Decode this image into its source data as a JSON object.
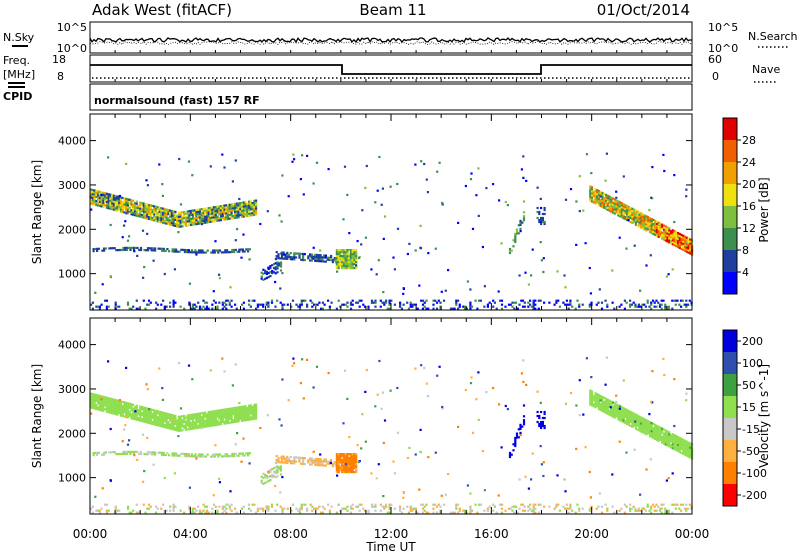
{
  "header": {
    "station": "Adak West (fitACF)",
    "beam": "Beam 11",
    "date": "01/Oct/2014"
  },
  "sky_panel": {
    "left_label": "N.Sky",
    "right_label": "N.Search",
    "ticks": [
      "10^5",
      "10^0"
    ]
  },
  "freq_panel": {
    "left_label_line1": "Freq.",
    "left_label_line2": "[MHz]",
    "right_label": "Nave",
    "left_ticks": [
      "18",
      "8"
    ],
    "right_ticks": [
      "60",
      "0"
    ]
  },
  "cpid": {
    "label": "CPID",
    "text": "normalsound (fast) 157 RF"
  },
  "colors": {
    "power": [
      "#0000ff",
      "#1f3f9f",
      "#3d8f4f",
      "#7fbf3f",
      "#f0e010",
      "#f0a000",
      "#f06000",
      "#e00000"
    ],
    "velocity": [
      "#ff0000",
      "#ff7f00",
      "#ffaf40",
      "#c8c8c8",
      "#8fdf50",
      "#3fa03f",
      "#2f4faf",
      "#0000dd"
    ]
  },
  "chart_data": [
    {
      "type": "heatmap",
      "title": "Power",
      "ylabel": "Slant Range [km]",
      "xlabel": "Time UT",
      "xlim": [
        "00:00",
        "24:00"
      ],
      "ylim": [
        180,
        4600
      ],
      "yticks": [
        1000,
        2000,
        3000,
        4000
      ],
      "xticks": [
        "00:00",
        "04:00",
        "08:00",
        "12:00",
        "16:00",
        "20:00",
        "00:00"
      ],
      "colorbar": {
        "label": "Power [dB]",
        "ticks": [
          4,
          8,
          12,
          16,
          20,
          24,
          28
        ]
      }
    },
    {
      "type": "heatmap",
      "title": "Velocity",
      "ylabel": "Slant Range [km]",
      "xlabel": "Time UT",
      "xlim": [
        "00:00",
        "24:00"
      ],
      "ylim": [
        180,
        4600
      ],
      "yticks": [
        1000,
        2000,
        3000,
        4000
      ],
      "xticks": [
        "00:00",
        "04:00",
        "08:00",
        "12:00",
        "16:00",
        "20:00",
        "00:00"
      ],
      "colorbar": {
        "label": "Velocity [m s^-1]",
        "ticks": [
          200,
          100,
          50,
          15,
          -15,
          -50,
          -100,
          -200
        ]
      }
    }
  ]
}
